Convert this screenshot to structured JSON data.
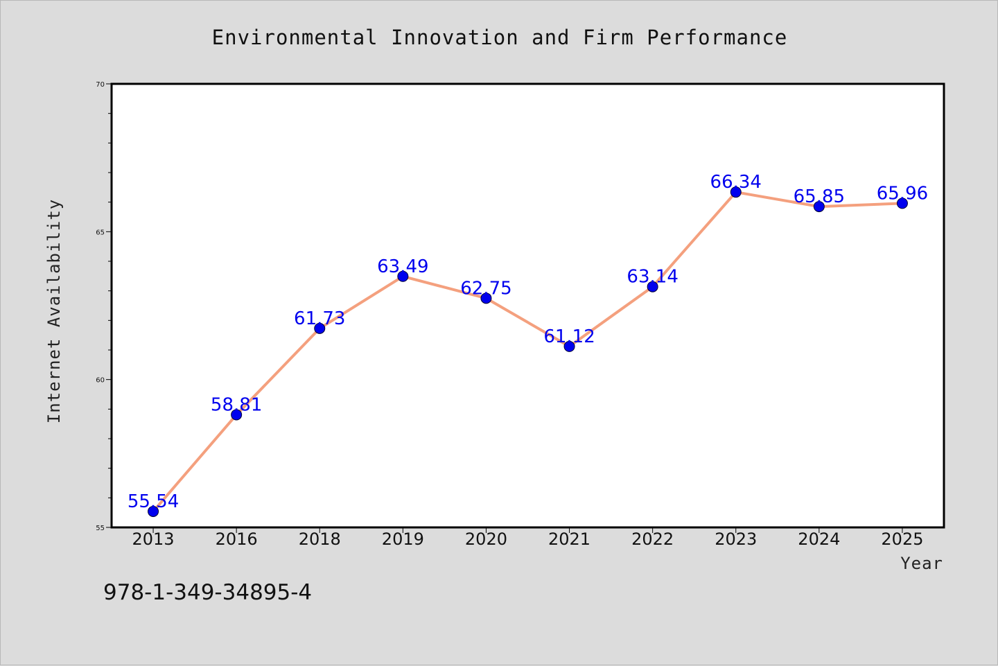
{
  "chart_data": {
    "type": "line",
    "title": "Environmental Innovation and Firm Performance",
    "xlabel": "Year",
    "ylabel": "Internet Availability",
    "categories": [
      "2013",
      "2016",
      "2018",
      "2019",
      "2020",
      "2021",
      "2022",
      "2023",
      "2024",
      "2025"
    ],
    "values": [
      55.54,
      58.81,
      61.73,
      63.49,
      62.75,
      61.12,
      63.14,
      66.34,
      65.85,
      65.96
    ],
    "data_labels": [
      "55.54",
      "58.81",
      "61.73",
      "63.49",
      "62.75",
      "61.12",
      "63.14",
      "66.34",
      "65.85",
      "65.96"
    ],
    "ylim": [
      55,
      70
    ],
    "yticks": [
      "55",
      "60",
      "65",
      "70"
    ],
    "grid": false,
    "legend": "none",
    "line_color": "#f4a07e",
    "marker_color": "#0000ee",
    "label_color": "#0000ee"
  },
  "annotation": {
    "isbn": "978-1-349-34895-4"
  }
}
